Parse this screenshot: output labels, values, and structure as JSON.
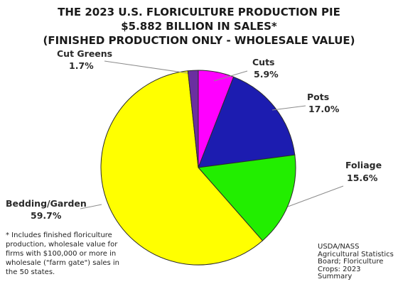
{
  "chart_data": {
    "type": "pie",
    "title_lines": [
      "THE 2023 U.S. FLORICULTURE PRODUCTION PIE",
      "$5.882 BILLION IN SALES*",
      "(FINISHED PRODUCTION ONLY - WHOLESALE VALUE)"
    ],
    "slices": [
      {
        "label": "Cuts",
        "value": 5.9,
        "display": "5.9%",
        "color": "#ff00ff"
      },
      {
        "label": "Pots",
        "value": 17.0,
        "display": "17.0%",
        "color": "#1c1cb0"
      },
      {
        "label": "Foliage",
        "value": 15.6,
        "display": "15.6%",
        "color": "#22ee00"
      },
      {
        "label": "Bedding/Garden",
        "value": 59.7,
        "display": "59.7%",
        "color": "#ffff00"
      },
      {
        "label": "Cut Greens",
        "value": 1.7,
        "display": "1.7%",
        "color": "#6b2fa0"
      }
    ],
    "start_angle_deg": 0,
    "direction": "clockwise",
    "legend": "none"
  },
  "footnote_lines": [
    "* Includes finished floriculture",
    "production, wholesale value for",
    "firms with $100,000 or more in",
    "wholesale (\"farm gate\") sales in",
    "the 50 states."
  ],
  "source_lines": [
    "USDA/NASS",
    "Agricultural Statistics",
    "Board; Floriculture",
    "Crops: 2023",
    "Summary"
  ]
}
